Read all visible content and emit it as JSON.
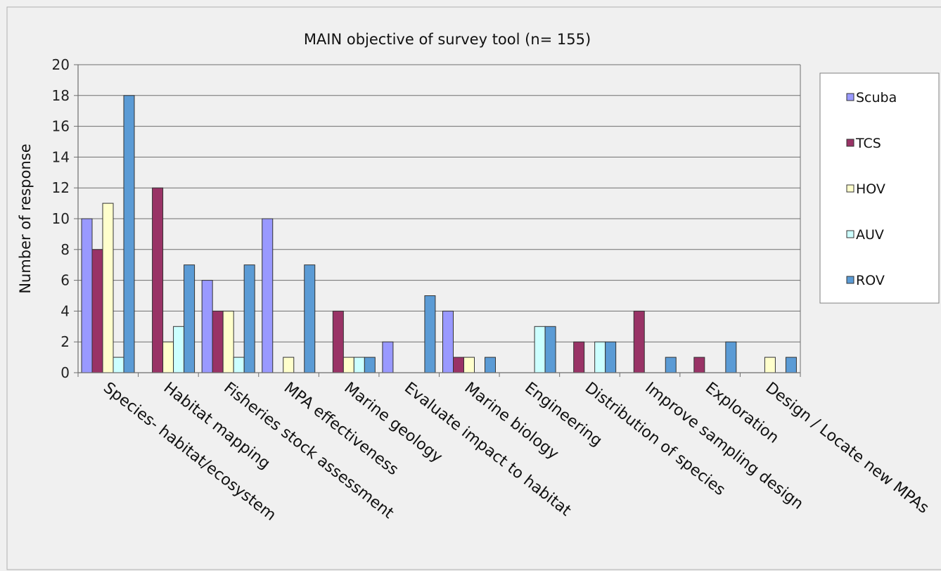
{
  "chart_data": {
    "type": "bar",
    "title": "MAIN objective of  survey tool (n= 155)",
    "xlabel": "",
    "ylabel": "Number of response",
    "ylim": [
      0,
      20
    ],
    "yticks": [
      0,
      2,
      4,
      6,
      8,
      10,
      12,
      14,
      16,
      18,
      20
    ],
    "grid": true,
    "legend_position": "right",
    "categories": [
      "Species- habitat/ecosystem",
      "Habitat mapping",
      "Fisheries stock assessment",
      "MPA effectiveness",
      "Marine geology",
      "Evaluate impact to habitat",
      "Marine biology",
      "Engineering",
      "Distribution of species",
      "Improve sampling design",
      "Exploration",
      "Design / Locate new MPAs"
    ],
    "series": [
      {
        "name": "Scuba",
        "color": "#9999ff",
        "values": [
          10,
          0,
          6,
          10,
          0,
          2,
          4,
          0,
          0,
          0,
          0,
          0
        ]
      },
      {
        "name": "TCS",
        "color": "#993366",
        "values": [
          8,
          12,
          4,
          0,
          4,
          0,
          1,
          0,
          2,
          4,
          1,
          0
        ]
      },
      {
        "name": "HOV",
        "color": "#ffffcc",
        "values": [
          11,
          2,
          4,
          1,
          1,
          0,
          1,
          0,
          0,
          0,
          0,
          1
        ]
      },
      {
        "name": "AUV",
        "color": "#ccffff",
        "values": [
          1,
          3,
          1,
          0,
          1,
          0,
          0,
          3,
          2,
          0,
          0,
          0
        ]
      },
      {
        "name": "ROV",
        "color": "#5b9bd5",
        "values": [
          18,
          7,
          7,
          7,
          1,
          5,
          1,
          3,
          2,
          1,
          2,
          1
        ]
      }
    ]
  }
}
